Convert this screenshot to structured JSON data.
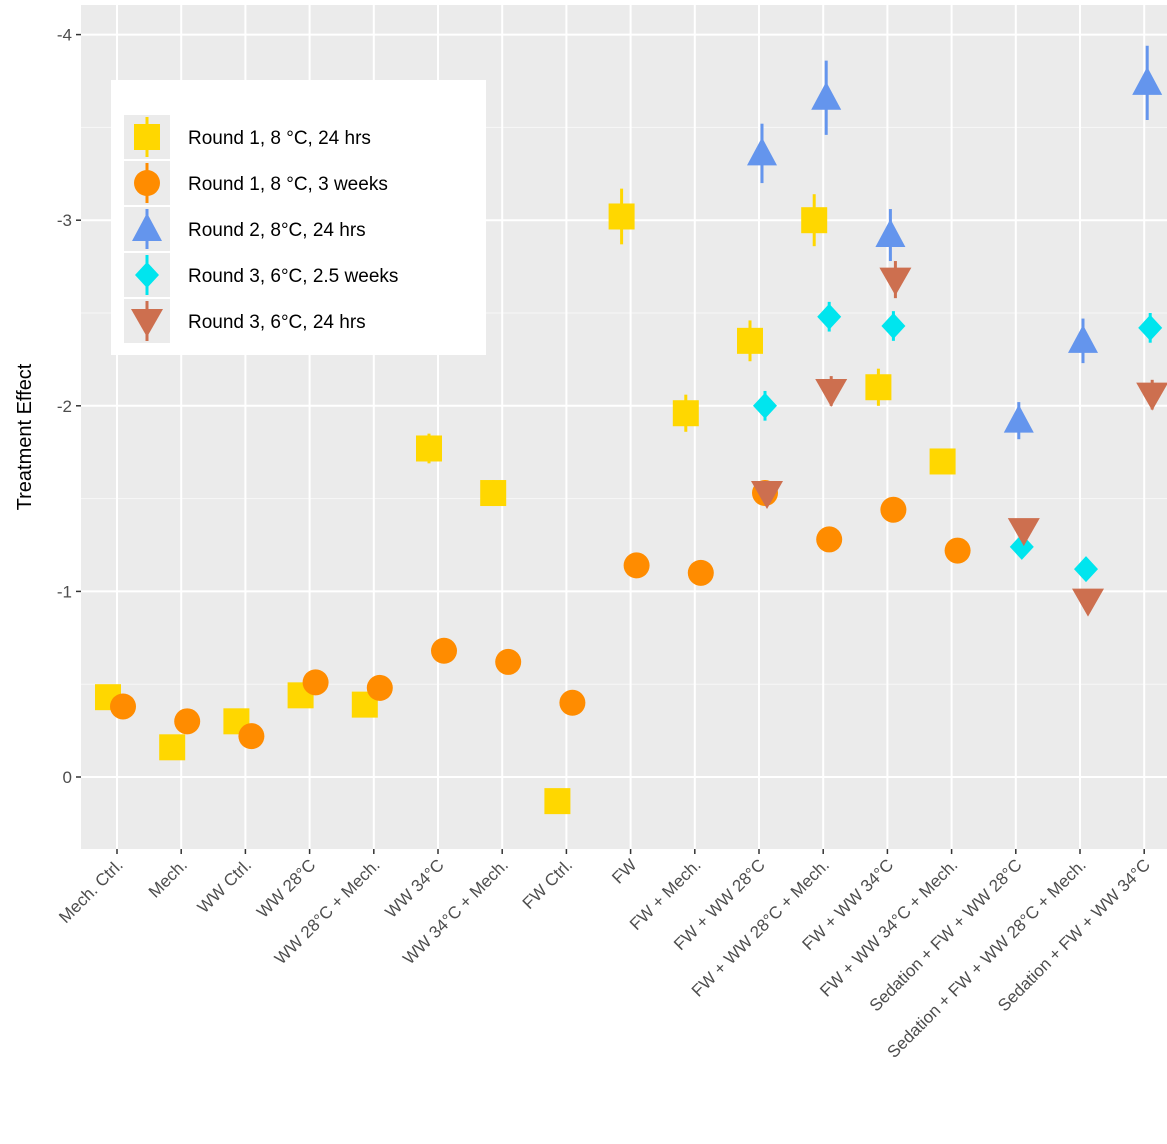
{
  "chart_data": {
    "type": "scatter",
    "xlabel": "",
    "ylabel": "Treatment Effect",
    "y_axis_reversed": true,
    "ylim": [
      0.4,
      -4.15
    ],
    "yticks": [
      0,
      -1,
      -2,
      -3,
      -4
    ],
    "grid": true,
    "legend_position": "top-left",
    "categories": [
      "Mech. Ctrl.",
      "Mech.",
      "WW Ctrl.",
      "WW 28°C",
      "WW 28°C + Mech.",
      "WW 34°C",
      "WW 34°C + Mech.",
      "FW Ctrl.",
      "FW",
      "FW + Mech.",
      "FW + WW 28°C",
      "FW + WW 28°C + Mech.",
      "FW + WW 34°C",
      "FW + WW 34°C + Mech.",
      "Sedation + FW + WW 28°C",
      "Sedation + FW + WW 28°C + Mech.",
      "Sedation + FW + WW 34°C"
    ],
    "series": [
      {
        "name": "Round 1, 8 °C, 24 hrs",
        "color": "#FFD700",
        "shape": "square",
        "values": [
          -0.43,
          -0.16,
          -0.3,
          -0.44,
          -0.39,
          -1.77,
          -1.53,
          0.13,
          -3.02,
          -1.96,
          -2.35,
          -3.0,
          -2.1,
          -1.7,
          null,
          null,
          null
        ],
        "error": [
          0.03,
          0.03,
          0.03,
          0.03,
          0.03,
          0.08,
          0.07,
          0.03,
          0.15,
          0.1,
          0.11,
          0.14,
          0.1,
          0.06,
          null,
          null,
          null
        ]
      },
      {
        "name": "Round 1, 8 °C, 3 weeks",
        "color": "#FF8C00",
        "shape": "circle",
        "values": [
          -0.38,
          -0.3,
          -0.22,
          -0.51,
          -0.48,
          -0.68,
          -0.62,
          -0.4,
          -1.14,
          -1.1,
          -1.53,
          -1.28,
          -1.44,
          -1.22,
          null,
          null,
          null
        ],
        "error": [
          0.02,
          0.02,
          0.02,
          0.02,
          0.02,
          0.02,
          0.02,
          0.02,
          0.02,
          0.02,
          0.03,
          0.02,
          0.02,
          0.02,
          null,
          null,
          null
        ]
      },
      {
        "name": "Round 2, 8°C, 24 hrs",
        "color": "#6495ED",
        "shape": "triangle-up",
        "values": [
          null,
          null,
          null,
          null,
          null,
          null,
          null,
          null,
          null,
          null,
          -3.36,
          -3.66,
          -2.92,
          null,
          -1.92,
          -2.35,
          -3.74
        ],
        "error": [
          null,
          null,
          null,
          null,
          null,
          null,
          null,
          null,
          null,
          null,
          0.16,
          0.2,
          0.14,
          null,
          0.1,
          0.12,
          0.2
        ]
      },
      {
        "name": "Round 3, 6°C, 2.5 weeks",
        "color": "#00E5EE",
        "shape": "diamond",
        "values": [
          null,
          null,
          null,
          null,
          null,
          null,
          null,
          null,
          null,
          null,
          -2.0,
          -2.48,
          -2.43,
          null,
          -1.24,
          -1.12,
          -2.42
        ],
        "error": [
          null,
          null,
          null,
          null,
          null,
          null,
          null,
          null,
          null,
          null,
          0.08,
          0.08,
          0.08,
          null,
          0.05,
          0.05,
          0.08
        ]
      },
      {
        "name": "Round 3, 6°C, 24 hrs",
        "color": "#CD6F4F",
        "shape": "triangle-down",
        "values": [
          null,
          null,
          null,
          null,
          null,
          null,
          null,
          null,
          null,
          null,
          -1.53,
          -2.08,
          -2.68,
          null,
          -1.33,
          -0.95,
          -2.06
        ],
        "error": [
          null,
          null,
          null,
          null,
          null,
          null,
          null,
          null,
          null,
          null,
          0.06,
          0.08,
          0.1,
          null,
          0.06,
          0.05,
          0.08
        ]
      }
    ]
  }
}
